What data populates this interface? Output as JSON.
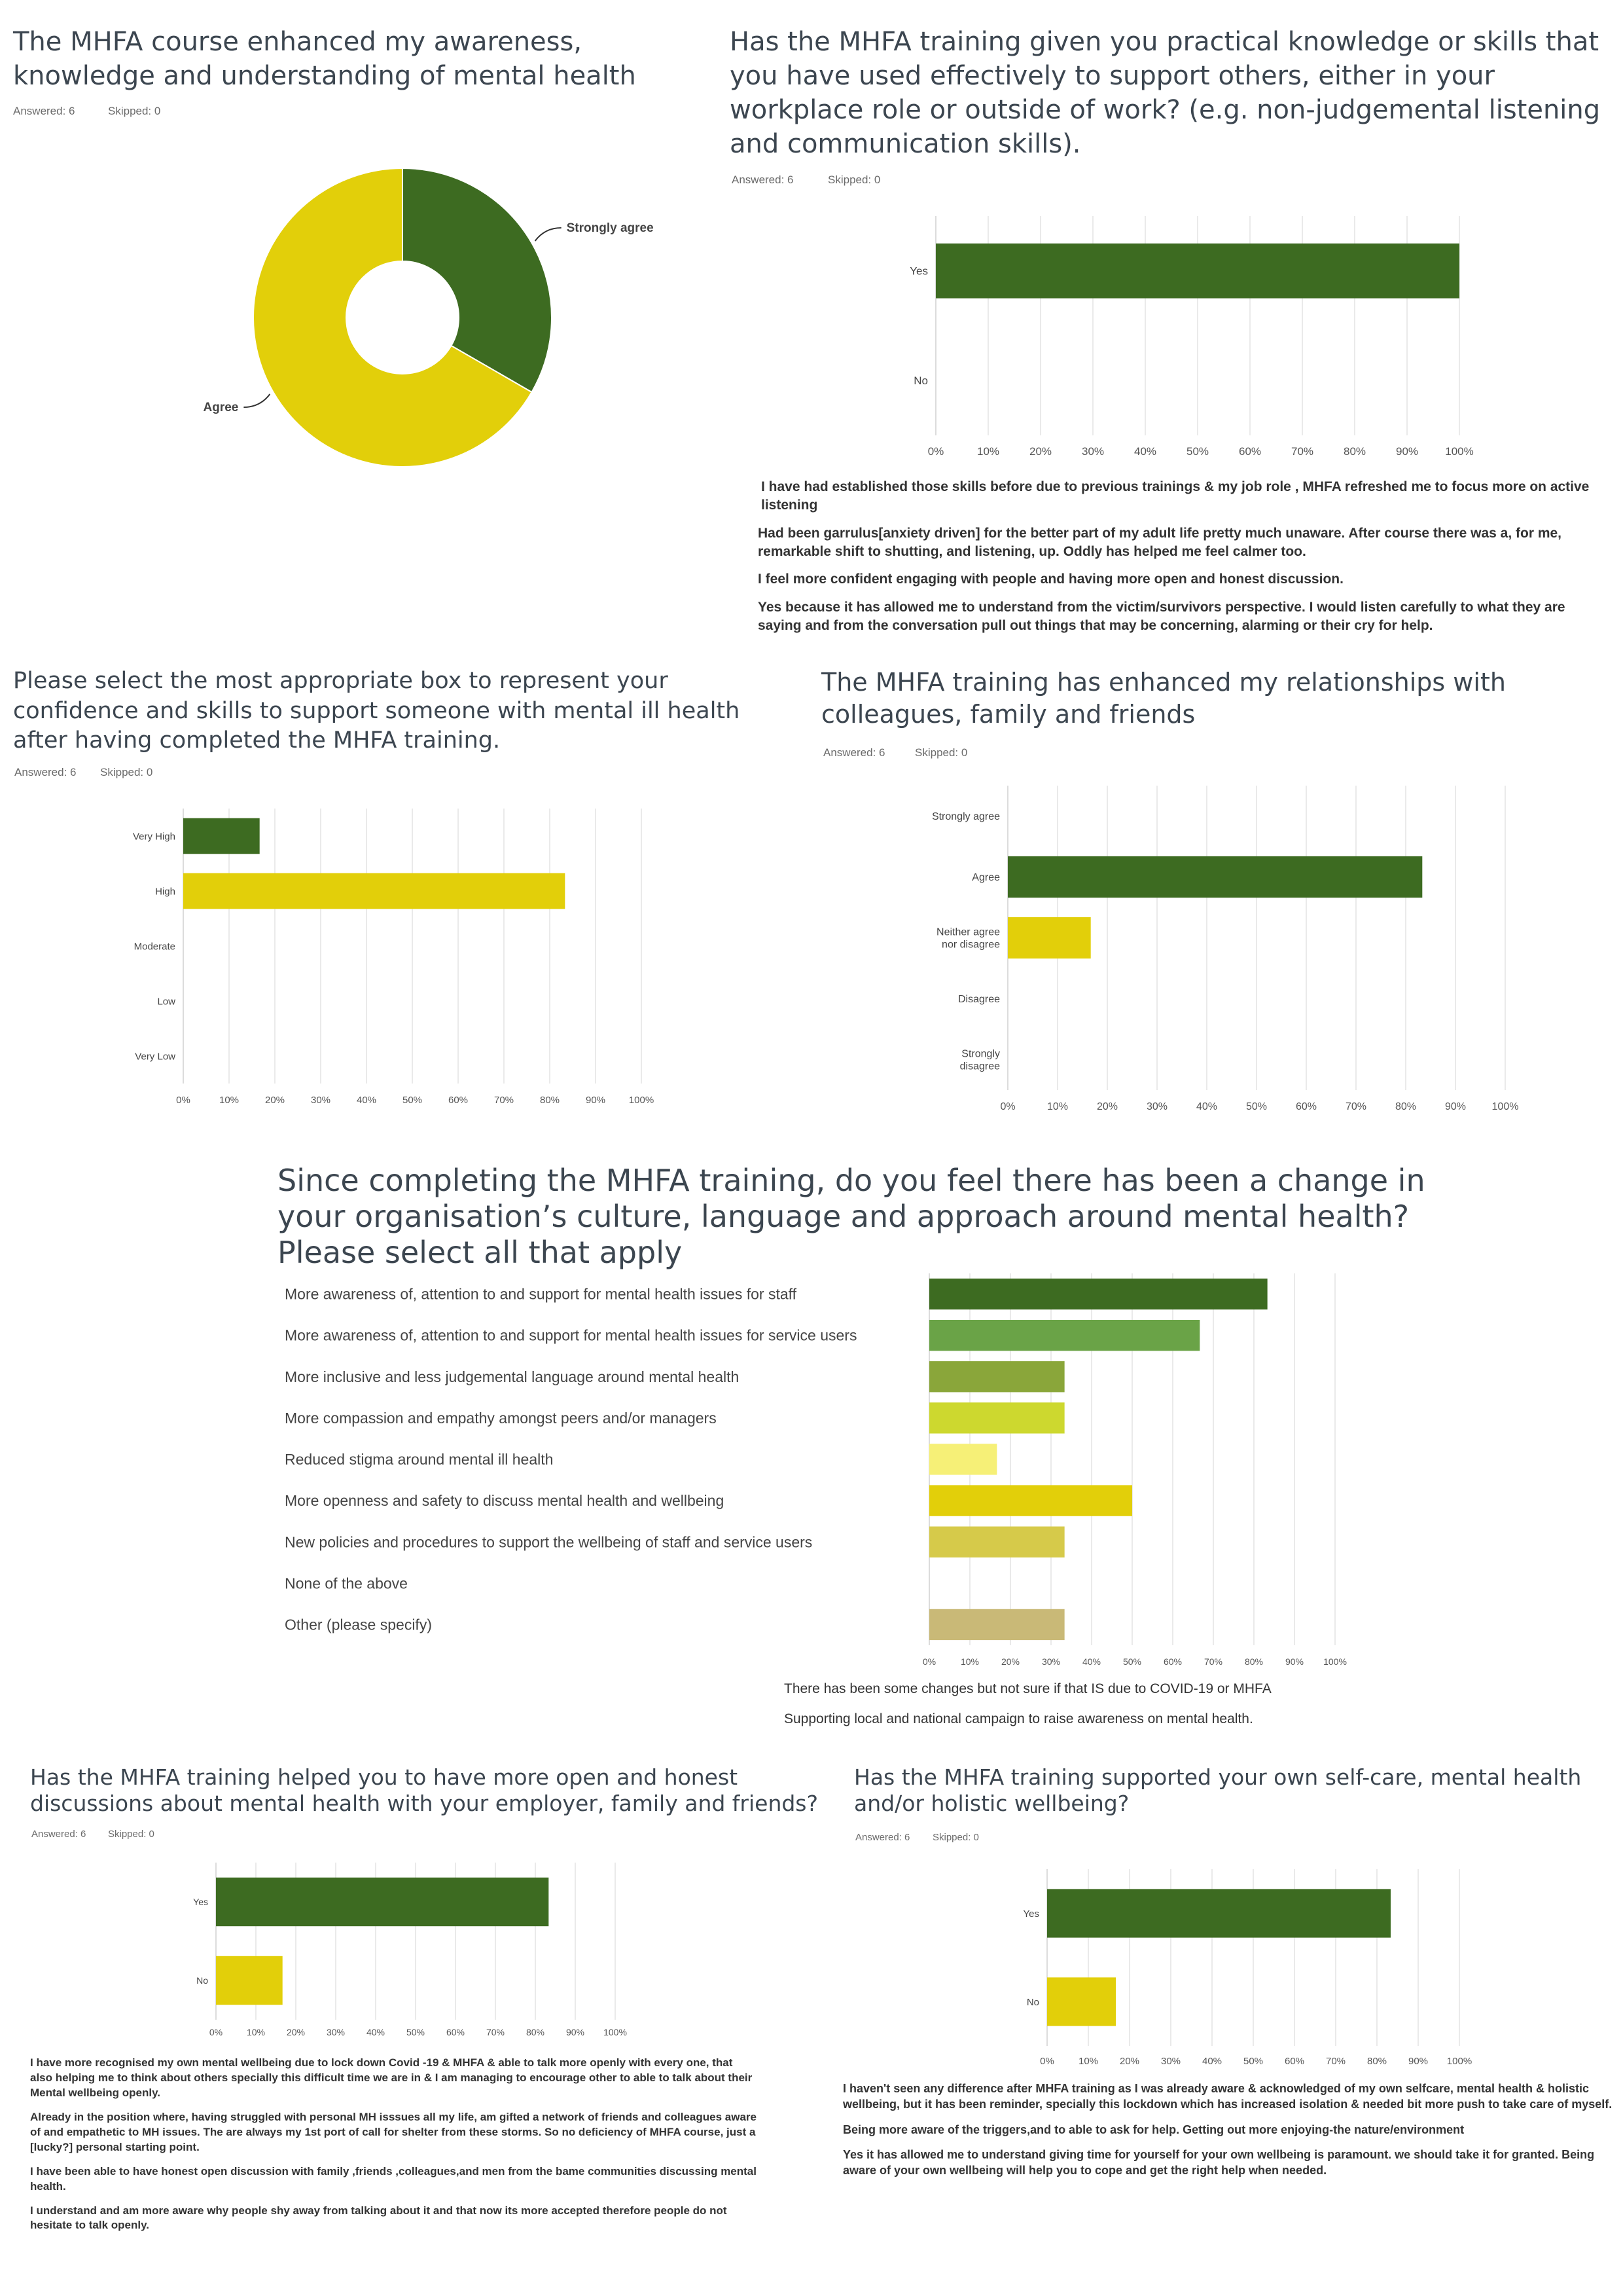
{
  "q1": {
    "title": "The MHFA course enhanced my awareness, knowledge and understanding of mental health",
    "answered": "Answered: 6",
    "skipped": "Skipped: 0"
  },
  "q2": {
    "title": "Has the MHFA training given you practical knowledge or skills that you have used effectively to support others, either in your workplace role or outside of work? (e.g. non-judgemental listening and communication skills).",
    "answered": "Answered: 6",
    "skipped": "Skipped: 0",
    "comments": [
      "I have had established those skills before due to previous trainings & my job role , MHFA refreshed me to focus more on active listening",
      "Had been garrulus[anxiety driven] for the better part of my adult life pretty much unaware. After course there was a, for me, remarkable shift to shutting, and listening, up. Oddly has helped me feel calmer too.",
      "I feel more confident engaging with people and having more open and honest discussion.",
      "Yes because it has allowed me to understand from the victim/survivors perspective. I would listen carefully to what they are saying and from the conversation pull out things that may be concerning, alarming or their cry for help."
    ]
  },
  "q3": {
    "title": "Please select the most appropriate box to represent your confidence and skills to support someone with mental ill health after having completed the MHFA training.",
    "answered": "Answered: 6",
    "skipped": "Skipped: 0"
  },
  "q4": {
    "title": "The MHFA training has enhanced my relationships with colleagues, family and friends",
    "answered": "Answered: 6",
    "skipped": "Skipped: 0"
  },
  "q5": {
    "title": "Since completing the MHFA training, do you feel there has been a change in your organisation’s culture, language and approach around mental health? Please select all that apply",
    "comments": [
      "There has been some changes but not sure if that IS due to COVID-19 or MHFA",
      "Supporting local and national campaign to raise awareness on mental health."
    ]
  },
  "q6": {
    "title": "Has the MHFA training helped you to have more open and honest discussions about mental health with your employer, family and friends?",
    "answered": "Answered: 6",
    "skipped": "Skipped: 0",
    "comments": [
      "I have more recognised my own mental wellbeing due to lock down Covid -19 & MHFA & able to talk more openly with every one, that also helping me to think about others specially this difficult time we are in & I am managing to encourage other to able to talk about their Mental wellbeing openly.",
      "Already in the position where, having struggled with personal MH isssues all my life, am gifted a network of friends and colleagues aware of and empathetic to MH issues. The are always my 1st port of call for shelter from these storms. So no deficiency of MHFA course, just a [lucky?] personal starting point.",
      "I have been able to have honest open discussion with family ,friends ,colleagues,and men from the bame communities discussing mental health.",
      "I understand and am more aware why people shy away from talking about it and that now its more accepted therefore people do not hesitate to talk openly."
    ]
  },
  "q7": {
    "title": "Has the MHFA training supported your own self-care, mental health and/or holistic wellbeing?",
    "answered": "Answered: 6",
    "skipped": "Skipped: 0",
    "comments": [
      "I haven't seen any difference after MHFA training as I was already aware & acknowledged of my own selfcare, mental health & holistic wellbeing, but it has been reminder, specially this lockdown which has increased isolation & needed bit more push to take care of myself.",
      "Being more aware of the triggers,and to able to ask for help. Getting out more enjoying-the nature/environment",
      "Yes it has allowed me to understand giving time for yourself for your own wellbeing is paramount. we should take it for granted. Being aware of your own wellbeing will help you to cope and get the right help when needed."
    ]
  },
  "colors": {
    "dark_green": "#3d6b21",
    "yellow": "#e2cf0a",
    "title_text": "#3c4650"
  },
  "chart_data": [
    {
      "type": "pie",
      "donut": true,
      "categories": [
        "Strongly agree",
        "Agree"
      ],
      "values": [
        33.33,
        66.67
      ],
      "colors": [
        "#3d6b21",
        "#e2cf0a"
      ]
    },
    {
      "type": "bar",
      "orientation": "horizontal",
      "categories": [
        "Yes",
        "No"
      ],
      "values": [
        100,
        0
      ],
      "colors": [
        "#3d6b21",
        "#e2cf0a"
      ],
      "xlim": [
        0,
        100
      ],
      "ticks": [
        "0%",
        "10%",
        "20%",
        "30%",
        "40%",
        "50%",
        "60%",
        "70%",
        "80%",
        "90%",
        "100%"
      ]
    },
    {
      "type": "bar",
      "orientation": "horizontal",
      "categories": [
        "Very High",
        "High",
        "Moderate",
        "Low",
        "Very Low"
      ],
      "values": [
        16.67,
        83.33,
        0,
        0,
        0
      ],
      "colors": [
        "#3d6b21",
        "#e2cf0a",
        "#e2cf0a",
        "#e2cf0a",
        "#e2cf0a"
      ],
      "xlim": [
        0,
        100
      ],
      "ticks": [
        "0%",
        "10%",
        "20%",
        "30%",
        "40%",
        "50%",
        "60%",
        "70%",
        "80%",
        "90%",
        "100%"
      ]
    },
    {
      "type": "bar",
      "orientation": "horizontal",
      "categories": [
        "Strongly agree",
        "Agree",
        "Neither agree nor disagree",
        "Disagree",
        "Strongly disagree"
      ],
      "values": [
        0,
        83.33,
        16.67,
        0,
        0
      ],
      "colors": [
        "#3d6b21",
        "#3d6b21",
        "#e2cf0a",
        "#e2cf0a",
        "#e2cf0a"
      ],
      "xlim": [
        0,
        100
      ],
      "ticks": [
        "0%",
        "10%",
        "20%",
        "30%",
        "40%",
        "50%",
        "60%",
        "70%",
        "80%",
        "90%",
        "100%"
      ]
    },
    {
      "type": "bar",
      "orientation": "horizontal",
      "categories": [
        "More awareness of, attention to and support for mental health issues for staff",
        "More awareness of, attention to and support for mental health issues for service users",
        "More inclusive and less judgemental language around mental health",
        "More compassion and empathy amongst peers and/or managers",
        "Reduced stigma around mental ill health",
        "More openness and safety to discuss mental health and wellbeing",
        "New policies and procedures to support the wellbeing of staff and service users",
        "None of the above",
        "Other (please specify)"
      ],
      "values": [
        83.33,
        66.67,
        33.33,
        33.33,
        16.67,
        50,
        33.33,
        0,
        33.33
      ],
      "colors": [
        "#3d6b21",
        "#6aa347",
        "#8aa63a",
        "#cdd82f",
        "#f6f077",
        "#e2cf0a",
        "#d6ca4a",
        "#cccccc",
        "#c9b977"
      ],
      "xlim": [
        0,
        100
      ],
      "ticks": [
        "0%",
        "10%",
        "20%",
        "30%",
        "40%",
        "50%",
        "60%",
        "70%",
        "80%",
        "90%",
        "100%"
      ]
    },
    {
      "type": "bar",
      "orientation": "horizontal",
      "categories": [
        "Yes",
        "No"
      ],
      "values": [
        83.33,
        16.67
      ],
      "colors": [
        "#3d6b21",
        "#e2cf0a"
      ],
      "xlim": [
        0,
        100
      ],
      "ticks": [
        "0%",
        "10%",
        "20%",
        "30%",
        "40%",
        "50%",
        "60%",
        "70%",
        "80%",
        "90%",
        "100%"
      ]
    },
    {
      "type": "bar",
      "orientation": "horizontal",
      "categories": [
        "Yes",
        "No"
      ],
      "values": [
        83.33,
        16.67
      ],
      "colors": [
        "#3d6b21",
        "#e2cf0a"
      ],
      "xlim": [
        0,
        100
      ],
      "ticks": [
        "0%",
        "10%",
        "20%",
        "30%",
        "40%",
        "50%",
        "60%",
        "70%",
        "80%",
        "90%",
        "100%"
      ]
    }
  ]
}
